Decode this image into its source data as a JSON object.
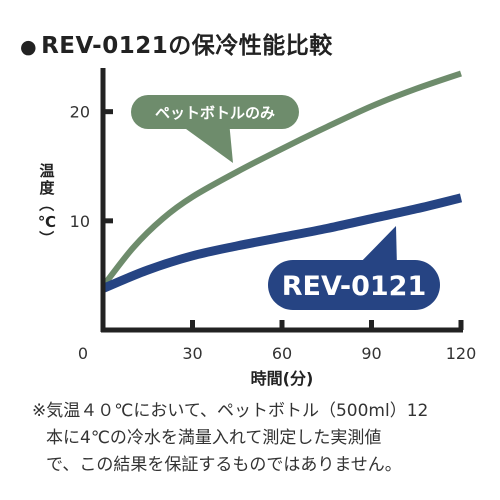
{
  "title": "REV-0121の保冷性能比較",
  "title_bullet": "●",
  "note": {
    "line1": "※気温４０℃において、ペットボトル（500ml）12",
    "line2": "本に4℃の冷水を満量入れて測定した実測値",
    "line3": "で、この結果を保証するものではありません。"
  },
  "colors": {
    "pet": "#6e8c6c",
    "rev": "#264483",
    "axis": "#222222"
  },
  "chart_data": {
    "type": "line",
    "xlabel": "時間(分)",
    "ylabel": "温度(℃)",
    "ylabel_chars": [
      "温",
      "度",
      "（",
      "℃",
      "）"
    ],
    "xlim": [
      0,
      120
    ],
    "ylim": [
      0,
      24
    ],
    "x_ticks": [
      0,
      30,
      60,
      90,
      120
    ],
    "y_ticks": [
      10,
      20
    ],
    "grid": false,
    "series": [
      {
        "name": "ペットボトルのみ",
        "color": "#6e8c6c",
        "x": [
          0,
          10,
          20,
          30,
          45,
          60,
          75,
          90,
          105,
          120
        ],
        "y": [
          4.0,
          7.5,
          10.2,
          12.2,
          14.5,
          16.6,
          18.6,
          20.5,
          22.1,
          23.5
        ]
      },
      {
        "name": "REV-0121",
        "color": "#264483",
        "x": [
          0,
          15,
          30,
          45,
          60,
          75,
          90,
          105,
          120
        ],
        "y": [
          3.8,
          5.5,
          6.8,
          7.7,
          8.5,
          9.3,
          10.2,
          11.1,
          12.1
        ]
      }
    ]
  }
}
